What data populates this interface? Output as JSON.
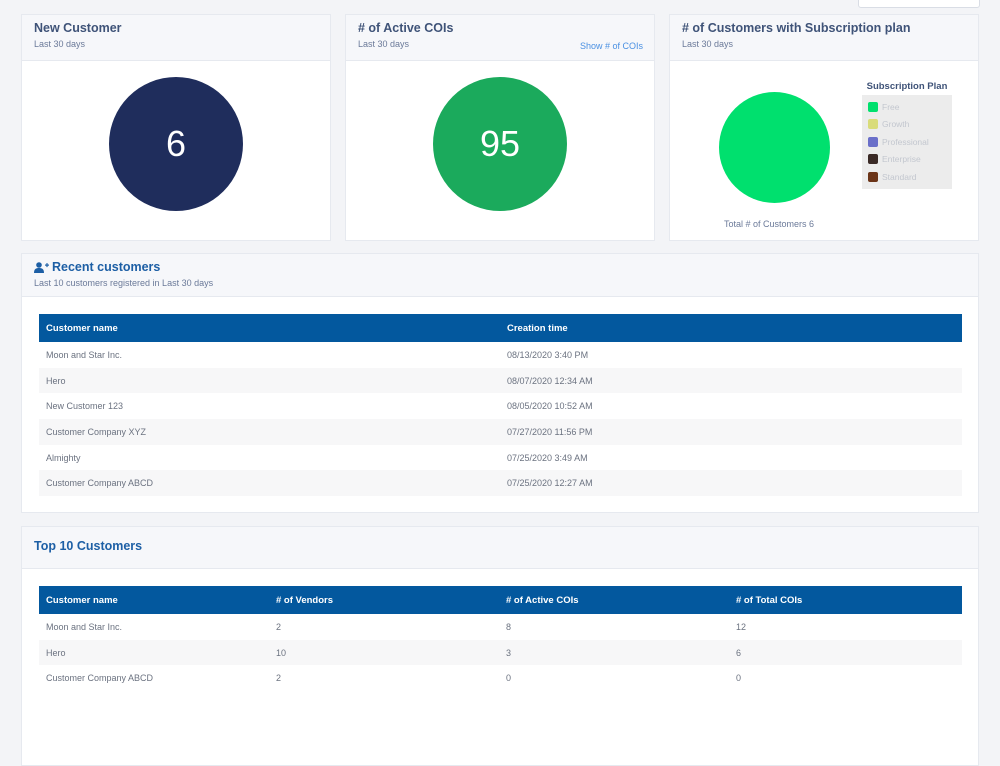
{
  "cards": {
    "new_customer": {
      "title": "New Customer",
      "subtitle": "Last 30 days",
      "value": "6",
      "color": "#1f2d5c"
    },
    "active_cois": {
      "title": "# of Active COIs",
      "subtitle": "Last 30 days",
      "link": "Show # of COIs",
      "value": "95",
      "color": "#1baa5c"
    },
    "subscription": {
      "title": "# of Customers with Subscription plan",
      "subtitle": "Last 30 days",
      "legend_title": "Subscription Plan",
      "legend": [
        {
          "label": "Free",
          "color": "#00e06e"
        },
        {
          "label": "Growth",
          "color": "#d9dc7a"
        },
        {
          "label": "Professional",
          "color": "#6a6fc9"
        },
        {
          "label": "Enterprise",
          "color": "#3a2a26"
        },
        {
          "label": "Standard",
          "color": "#6b3418"
        }
      ],
      "total": "Total # of Customers 6",
      "pie_color": "#00e06e"
    }
  },
  "recent": {
    "title": "Recent customers",
    "subtitle": "Last 10 customers registered in Last 30 days",
    "headers": [
      "Customer name",
      "Creation time"
    ],
    "rows": [
      [
        "Moon and Star Inc.",
        "08/13/2020 3:40 PM"
      ],
      [
        "Hero",
        "08/07/2020 12:34 AM"
      ],
      [
        "New Customer 123",
        "08/05/2020 10:52 AM"
      ],
      [
        "Customer Company XYZ",
        "07/27/2020 11:56 PM"
      ],
      [
        "Almighty",
        "07/25/2020 3:49 AM"
      ],
      [
        "Customer Company ABCD",
        "07/25/2020 12:27 AM"
      ]
    ]
  },
  "top": {
    "title": "Top 10 Customers",
    "headers": [
      "Customer name",
      "# of Vendors",
      "# of Active COIs",
      "# of Total COIs"
    ],
    "rows": [
      [
        "Moon and Star Inc.",
        "2",
        "8",
        "12"
      ],
      [
        "Hero",
        "10",
        "3",
        "6"
      ],
      [
        "Customer Company ABCD",
        "2",
        "0",
        "0"
      ]
    ]
  }
}
